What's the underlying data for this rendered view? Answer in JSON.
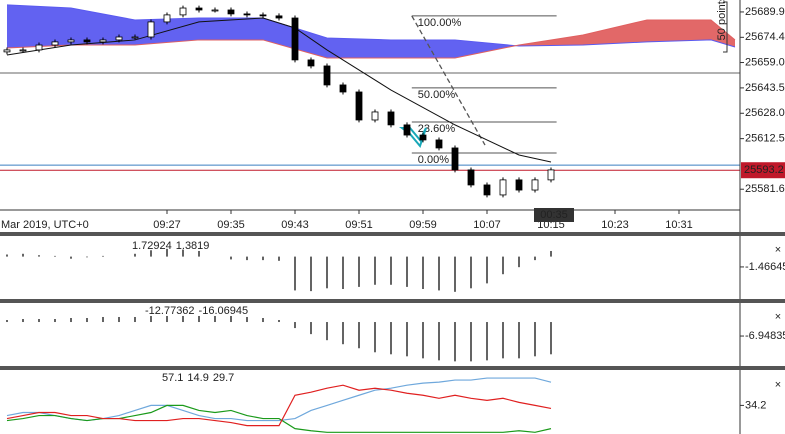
{
  "chart_data": [
    {
      "type": "candlestick",
      "x_caption": "Mar 2019, UTC+0",
      "x": [
        0,
        2,
        4,
        6,
        8,
        10,
        12,
        14,
        16,
        18,
        20,
        22,
        24,
        26,
        28,
        30,
        32,
        34,
        36,
        38,
        40,
        42,
        44,
        46,
        48,
        50,
        52,
        54,
        56,
        58,
        60,
        62,
        64,
        66,
        68
      ],
      "open": [
        25665.5,
        25666.7,
        25666.7,
        25669.7,
        25671.6,
        25672.8,
        25671.6,
        25672.8,
        25674.6,
        25674.6,
        25683.8,
        25688.1,
        25692.3,
        25691.1,
        25691.1,
        25688.7,
        25688.1,
        25687.5,
        25686.2,
        25660.6,
        25656.9,
        25645.3,
        25641.0,
        25623.9,
        25628.8,
        25620.9,
        25614.7,
        25611.7,
        25606.8,
        25593.4,
        25584.2,
        25578.1,
        25587.3,
        25581.1,
        25587.3
      ],
      "high": [
        25668.2,
        25668.2,
        25671.2,
        25673.1,
        25674.3,
        25674.3,
        25674.3,
        25676.1,
        25676.1,
        25685.3,
        25689.6,
        25693.8,
        25693.8,
        25692.6,
        25692.6,
        25690.2,
        25689.6,
        25689.0,
        25687.7,
        25662.1,
        25658.4,
        25646.8,
        25642.5,
        25630.3,
        25630.3,
        25622.4,
        25616.2,
        25613.2,
        25608.3,
        25594.9,
        25585.7,
        25588.8,
        25588.8,
        25588.8,
        25594.9
      ],
      "low": [
        25664.0,
        25665.2,
        25665.2,
        25668.2,
        25670.1,
        25670.1,
        25670.1,
        25671.3,
        25673.1,
        25673.1,
        25682.3,
        25686.6,
        25689.6,
        25689.6,
        25687.2,
        25686.6,
        25686.0,
        25684.7,
        25659.1,
        25655.4,
        25643.8,
        25639.5,
        25622.4,
        25622.4,
        25619.4,
        25613.2,
        25610.2,
        25605.3,
        25591.9,
        25582.7,
        25576.6,
        25576.6,
        25579.6,
        25579.6,
        25585.8
      ],
      "close": [
        25666.7,
        25666.7,
        25669.7,
        25671.6,
        25672.8,
        25671.6,
        25672.8,
        25674.6,
        25674.6,
        25683.8,
        25688.1,
        25692.3,
        25691.1,
        25691.1,
        25688.7,
        25688.1,
        25687.5,
        25686.2,
        25660.6,
        25656.9,
        25645.3,
        25641.0,
        25623.9,
        25628.8,
        25620.9,
        25614.7,
        25611.7,
        25606.8,
        25593.4,
        25584.2,
        25578.1,
        25587.3,
        25581.1,
        25587.3,
        25593.4
      ],
      "cloud": {
        "x": [
          0,
          8,
          16,
          24,
          32,
          40,
          48,
          56,
          64,
          72,
          80,
          88,
          91
        ],
        "span_a": [
          25694.2,
          25692.3,
          25685.0,
          25686.2,
          25686.2,
          25674.0,
          25672.8,
          25672.8,
          25669.1,
          25669.7,
          25671.6,
          25672.8,
          25668.5
        ],
        "span_b": [
          25667.9,
          25669.7,
          25669.7,
          25672.8,
          25672.8,
          25661.8,
          25661.8,
          25661.8,
          25669.7,
          25675.8,
          25685.0,
          25685.0,
          25672.8
        ],
        "up_color": "#5a5af0",
        "down_color": "#e06060"
      },
      "line_series": [
        {
          "color": "#111111",
          "x": [
            0,
            8,
            16,
            24,
            32,
            36,
            40,
            48,
            56,
            64,
            68
          ],
          "values": [
            25663.6,
            25669.7,
            25672.8,
            25683.8,
            25686.2,
            25680.1,
            25666.7,
            25642.2,
            25620.9,
            25602.5,
            25598.2
          ]
        }
      ],
      "levels": [
        {
          "value": 25652.6,
          "color": "#666666"
        }
      ],
      "bid_line": {
        "value": 25596.3,
        "color": "#3a7fc0"
      },
      "price_line": {
        "value": 25593.2,
        "color": "#c0182a"
      },
      "fibonacci": {
        "x": [
          50.6,
          68.7
        ],
        "color": "#555555",
        "levels": [
          {
            "label": "100.00%",
            "value": 25687.5
          },
          {
            "label": "50.00%",
            "value": 25643.5
          },
          {
            "label": "23.60%",
            "value": 25622.7
          },
          {
            "label": "0.00%",
            "value": 25603.7
          }
        ]
      },
      "trend_line": {
        "x": [
          50.6,
          59.75
        ],
        "y": [
          25687.5,
          25608.6
        ]
      },
      "timer": "00:35",
      "scale_note": "50 points",
      "xlim": [
        -0.875,
        91.625
      ],
      "xticks": [
        {
          "value": 20,
          "label": "09:27"
        },
        {
          "value": 28,
          "label": "09:35"
        },
        {
          "value": 36,
          "label": "09:43"
        },
        {
          "value": 44,
          "label": "09:51"
        },
        {
          "value": 52,
          "label": "09:59"
        },
        {
          "value": 60,
          "label": "10:07"
        },
        {
          "value": 68,
          "label": "10:15"
        },
        {
          "value": 76,
          "label": "10:23"
        },
        {
          "value": 84,
          "label": "10:31"
        }
      ],
      "ylim": [
        25568.9,
        25697.2
      ],
      "yticks": [
        25689.9,
        25674.4,
        {
          "value": 25659.0,
          "label": "25659.0"
        },
        25643.5,
        {
          "value": 25628.0,
          "label": "25628.0"
        },
        25612.5,
        25581.6
      ],
      "grid": false
    },
    {
      "type": "bar",
      "header_values": [
        {
          "text": "1.72924",
          "color": "#222222"
        },
        {
          "text": "1.3819",
          "color": "#e02020"
        }
      ],
      "x": [
        0,
        2,
        4,
        6,
        8,
        10,
        12,
        14,
        16,
        18,
        20,
        22,
        24,
        26,
        28,
        30,
        32,
        34,
        36,
        38,
        40,
        42,
        44,
        46,
        48,
        50,
        52,
        54,
        56,
        58,
        60,
        62,
        64,
        66,
        68
      ],
      "values": [
        0.3,
        0.4,
        0.2,
        0.1,
        -0.3,
        -0.1,
        0.1,
        0.0,
        0.4,
        0.9,
        1.1,
        1.0,
        0.8,
        0.0,
        -0.4,
        -0.5,
        -0.5,
        -0.6,
        -4.8,
        -4.9,
        -4.5,
        -4.6,
        -4.3,
        -4.0,
        -4.0,
        -4.3,
        -4.6,
        -4.8,
        -5.0,
        -4.5,
        -3.8,
        -2.5,
        -1.5,
        -0.5,
        0.8
      ],
      "color": "#222222",
      "xlim": [
        -0.875,
        91.625
      ],
      "ylim": [
        -6.16,
        2.64
      ],
      "yticks": [
        -1.46645
      ]
    },
    {
      "type": "bar",
      "header_values": [
        {
          "text": "-12.77362",
          "color": "#222222"
        },
        {
          "text": "-16.06945",
          "color": "#e02020"
        }
      ],
      "x": [
        0,
        2,
        4,
        6,
        8,
        10,
        12,
        14,
        16,
        18,
        20,
        22,
        24,
        26,
        28,
        30,
        32,
        34,
        36,
        38,
        40,
        42,
        44,
        46,
        48,
        50,
        52,
        54,
        56,
        58,
        60,
        62,
        64,
        66,
        68
      ],
      "values": [
        1.0,
        1.5,
        1.5,
        1.5,
        2.0,
        2.0,
        2.5,
        2.5,
        2.5,
        3.0,
        3.0,
        3.0,
        3.0,
        3.0,
        3.0,
        2.5,
        2.0,
        1.0,
        -3,
        -6,
        -9,
        -11,
        -13,
        -15,
        -16,
        -17,
        -18,
        -19,
        -19.5,
        -19.5,
        -19,
        -18,
        -18,
        -17,
        -16
      ],
      "color": "#222222",
      "xlim": [
        -0.875,
        91.625
      ],
      "ylim": [
        -21.8,
        9.43
      ],
      "yticks": [
        -6.94835
      ]
    },
    {
      "type": "line",
      "header_values": [
        {
          "text": "57.1",
          "color": "#6fa8dc"
        },
        {
          "text": "14.9",
          "color": "#1a9a1a"
        },
        {
          "text": "29.7",
          "color": "#e02020"
        }
      ],
      "x": [
        0,
        2,
        4,
        6,
        8,
        10,
        12,
        14,
        16,
        18,
        20,
        22,
        24,
        26,
        28,
        30,
        32,
        34,
        36,
        38,
        40,
        42,
        44,
        46,
        48,
        50,
        52,
        54,
        56,
        58,
        60,
        62,
        64,
        66,
        68
      ],
      "series": [
        {
          "color": "#6fa8dc",
          "values": [
            21.5,
            25.3,
            25.3,
            21.5,
            17.7,
            15.2,
            17.7,
            21.5,
            27.9,
            34.2,
            34.2,
            27.9,
            21.5,
            17.7,
            17.7,
            15.2,
            15.2,
            15.2,
            17.7,
            27.9,
            34.2,
            40.5,
            46.9,
            53.2,
            55.7,
            59.5,
            62.1,
            63.3,
            65.9,
            65.9,
            68.4,
            68.4,
            68.4,
            68.4,
            63.3
          ]
        },
        {
          "color": "#1a9a1a",
          "values": [
            15.2,
            17.7,
            21.5,
            21.5,
            17.7,
            15.2,
            17.7,
            17.7,
            21.5,
            25.3,
            34.2,
            34.2,
            27.9,
            25.3,
            27.9,
            21.5,
            17.7,
            17.7,
            5.1,
            2.5,
            0.5,
            0.5,
            0.5,
            0.5,
            0.5,
            0.5,
            0.5,
            0.5,
            0.5,
            0.5,
            0.5,
            0.5,
            2.5,
            0.5,
            5.1
          ]
        },
        {
          "color": "#e02020",
          "values": [
            17.7,
            21.5,
            25.3,
            25.3,
            21.5,
            21.5,
            17.7,
            17.7,
            15.2,
            15.2,
            15.2,
            17.7,
            17.7,
            15.2,
            12.7,
            8.9,
            8.9,
            8.9,
            46.9,
            50.7,
            55.7,
            59.5,
            53.2,
            55.7,
            53.2,
            49.4,
            46.9,
            43.1,
            46.9,
            43.1,
            40.5,
            43.1,
            38.0,
            34.2,
            30.4
          ]
        }
      ],
      "xlim": [
        -0.875,
        91.625
      ],
      "ylim": [
        -1.6,
        78.5
      ],
      "yticks": [
        34.2
      ]
    }
  ]
}
